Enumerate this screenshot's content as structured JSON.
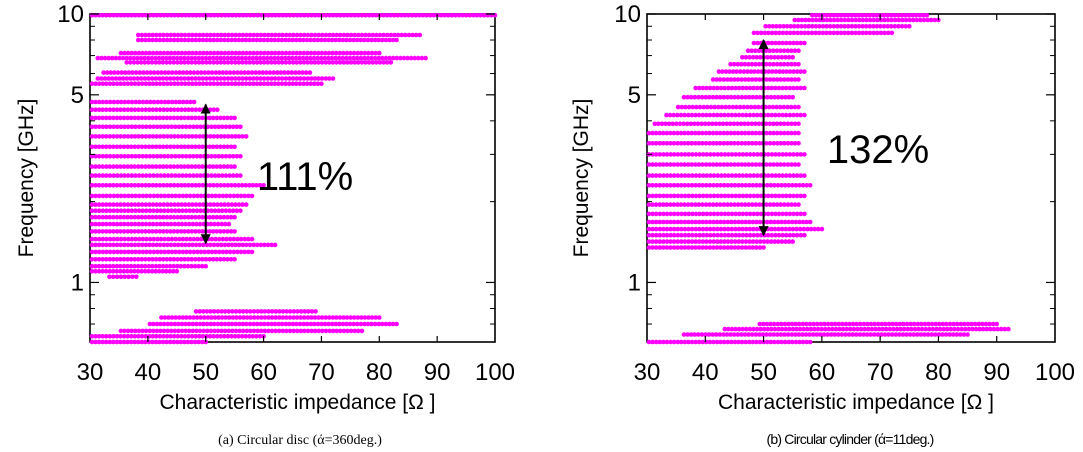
{
  "chart_data": [
    {
      "type": "scatter",
      "xlabel": "Characteristic impedance [Ω ]",
      "ylabel": "Frequency [GHz]",
      "xlim": [
        30,
        100
      ],
      "ylim": [
        0.6,
        10
      ],
      "yscale": "log",
      "x_ticks": [
        "30",
        "40",
        "50",
        "60",
        "70",
        "80",
        "90",
        "100"
      ],
      "y_ticks": [
        "1",
        "5",
        "10"
      ],
      "point_color": "#ff00ff",
      "annotation": "111%",
      "arrow": {
        "x": 50,
        "y_from": 1.4,
        "y_to": 4.6
      },
      "caption": "(a) Circular disc (ά=360deg.)",
      "bands": [
        {
          "y": 0.6,
          "x": [
            30,
            50
          ]
        },
        {
          "y": 0.63,
          "x": [
            30,
            60
          ]
        },
        {
          "y": 0.66,
          "x": [
            35,
            77
          ]
        },
        {
          "y": 0.7,
          "x": [
            40,
            83
          ]
        },
        {
          "y": 0.74,
          "x": [
            42,
            80
          ]
        },
        {
          "y": 0.78,
          "x": [
            48,
            69
          ]
        },
        {
          "y": 1.05,
          "x": [
            33,
            38
          ]
        },
        {
          "y": 1.1,
          "x": [
            30,
            45
          ]
        },
        {
          "y": 1.15,
          "x": [
            30,
            50
          ]
        },
        {
          "y": 1.22,
          "x": [
            30,
            55
          ]
        },
        {
          "y": 1.3,
          "x": [
            30,
            58
          ]
        },
        {
          "y": 1.38,
          "x": [
            30,
            62
          ]
        },
        {
          "y": 1.45,
          "x": [
            30,
            58
          ]
        },
        {
          "y": 1.55,
          "x": [
            30,
            55
          ]
        },
        {
          "y": 1.65,
          "x": [
            30,
            54
          ]
        },
        {
          "y": 1.75,
          "x": [
            30,
            55
          ]
        },
        {
          "y": 1.85,
          "x": [
            30,
            56
          ]
        },
        {
          "y": 1.95,
          "x": [
            30,
            57
          ]
        },
        {
          "y": 2.1,
          "x": [
            30,
            58
          ]
        },
        {
          "y": 2.3,
          "x": [
            30,
            60
          ]
        },
        {
          "y": 2.5,
          "x": [
            30,
            56
          ]
        },
        {
          "y": 2.7,
          "x": [
            30,
            55
          ]
        },
        {
          "y": 2.95,
          "x": [
            30,
            56
          ]
        },
        {
          "y": 3.2,
          "x": [
            30,
            55
          ]
        },
        {
          "y": 3.5,
          "x": [
            30,
            57
          ]
        },
        {
          "y": 3.8,
          "x": [
            30,
            56
          ]
        },
        {
          "y": 4.1,
          "x": [
            30,
            55
          ]
        },
        {
          "y": 4.4,
          "x": [
            30,
            52
          ]
        },
        {
          "y": 4.7,
          "x": [
            30,
            48
          ]
        },
        {
          "y": 5.5,
          "x": [
            30,
            70
          ]
        },
        {
          "y": 5.75,
          "x": [
            31,
            72
          ]
        },
        {
          "y": 6.05,
          "x": [
            32,
            68
          ]
        },
        {
          "y": 6.6,
          "x": [
            36,
            82
          ]
        },
        {
          "y": 6.85,
          "x": [
            31,
            88
          ]
        },
        {
          "y": 7.15,
          "x": [
            35,
            80
          ]
        },
        {
          "y": 8.0,
          "x": [
            38,
            83
          ]
        },
        {
          "y": 8.35,
          "x": [
            38,
            87
          ]
        },
        {
          "y": 9.9,
          "x": [
            30,
            100
          ]
        }
      ]
    },
    {
      "type": "scatter",
      "xlabel": "Characteristic impedance [Ω ]",
      "ylabel": "Frequency [GHz]",
      "xlim": [
        30,
        100
      ],
      "ylim": [
        0.6,
        10
      ],
      "yscale": "log",
      "x_ticks": [
        "30",
        "40",
        "50",
        "60",
        "70",
        "80",
        "90",
        "100"
      ],
      "y_ticks": [
        "1",
        "5",
        "10"
      ],
      "point_color": "#ff00ff",
      "annotation": "132%",
      "arrow": {
        "x": 50,
        "y_from": 1.5,
        "y_to": 8.0
      },
      "caption": "(b) Circular cylinder (ά=11deg.)",
      "bands": [
        {
          "y": 0.6,
          "x": [
            30,
            58
          ]
        },
        {
          "y": 0.64,
          "x": [
            36,
            85
          ]
        },
        {
          "y": 0.67,
          "x": [
            43,
            92
          ]
        },
        {
          "y": 0.7,
          "x": [
            49,
            90
          ]
        },
        {
          "y": 1.35,
          "x": [
            30,
            50
          ]
        },
        {
          "y": 1.42,
          "x": [
            30,
            55
          ]
        },
        {
          "y": 1.5,
          "x": [
            30,
            57
          ]
        },
        {
          "y": 1.58,
          "x": [
            30,
            60
          ]
        },
        {
          "y": 1.68,
          "x": [
            30,
            58
          ]
        },
        {
          "y": 1.8,
          "x": [
            30,
            57
          ]
        },
        {
          "y": 1.95,
          "x": [
            30,
            56
          ]
        },
        {
          "y": 2.1,
          "x": [
            30,
            57
          ]
        },
        {
          "y": 2.3,
          "x": [
            30,
            58
          ]
        },
        {
          "y": 2.5,
          "x": [
            30,
            57
          ]
        },
        {
          "y": 2.75,
          "x": [
            30,
            56
          ]
        },
        {
          "y": 3.0,
          "x": [
            30,
            57
          ]
        },
        {
          "y": 3.3,
          "x": [
            30,
            56
          ]
        },
        {
          "y": 3.6,
          "x": [
            30,
            56
          ]
        },
        {
          "y": 3.9,
          "x": [
            31,
            56
          ]
        },
        {
          "y": 4.2,
          "x": [
            33,
            57
          ]
        },
        {
          "y": 4.5,
          "x": [
            35,
            56
          ]
        },
        {
          "y": 4.9,
          "x": [
            36,
            55
          ]
        },
        {
          "y": 5.3,
          "x": [
            38,
            57
          ]
        },
        {
          "y": 5.7,
          "x": [
            41,
            56
          ]
        },
        {
          "y": 6.1,
          "x": [
            42,
            57
          ]
        },
        {
          "y": 6.5,
          "x": [
            44,
            56
          ]
        },
        {
          "y": 6.9,
          "x": [
            46,
            55
          ]
        },
        {
          "y": 7.3,
          "x": [
            47,
            56
          ]
        },
        {
          "y": 7.8,
          "x": [
            48,
            57
          ]
        },
        {
          "y": 8.5,
          "x": [
            48,
            72
          ]
        },
        {
          "y": 9.0,
          "x": [
            50,
            75
          ]
        },
        {
          "y": 9.5,
          "x": [
            55,
            80
          ]
        },
        {
          "y": 9.9,
          "x": [
            58,
            78
          ]
        }
      ]
    }
  ]
}
